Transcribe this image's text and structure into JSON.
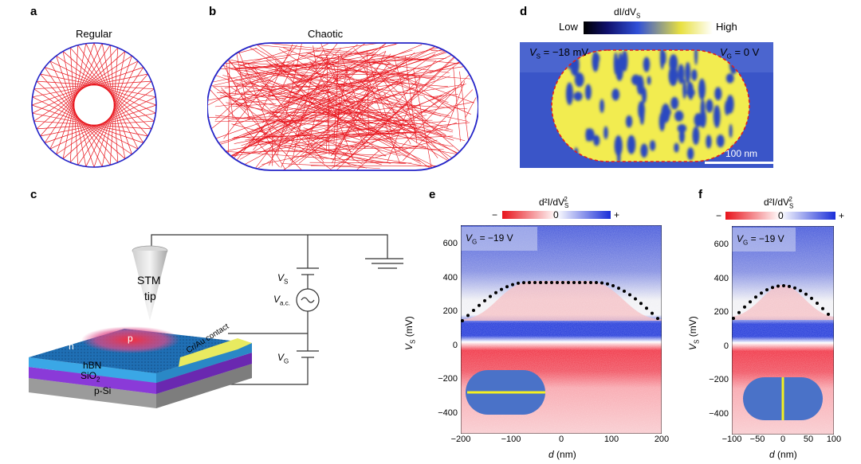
{
  "panels": {
    "a": {
      "letter": "a",
      "title": "Regular"
    },
    "b": {
      "letter": "b",
      "title": "Chaotic"
    },
    "c": {
      "letter": "c",
      "stm": "STM",
      "tip": "tip",
      "n": "n",
      "p": "p",
      "hbn": "hBN",
      "sio2": "SiO",
      "sio2_sub": "2",
      "psi": "p-Si",
      "contact": "Cr/Au contact",
      "vs": "V",
      "vs_sub": "S",
      "vac": "V",
      "vac_sub": "a.c.",
      "vg": "V",
      "vg_sub": "G"
    },
    "d": {
      "letter": "d",
      "colorbar_title": "dI/dV",
      "colorbar_sub": "S",
      "low": "Low",
      "high": "High",
      "vs_label": "V",
      "vs_sub": "S",
      "vs_value": " = −18 mV",
      "vg_label": "V",
      "vg_sub": "G",
      "vg_value": " = 0 V",
      "scalebar": "100 nm"
    },
    "e": {
      "letter": "e",
      "colorbar_title": "d²I/dV",
      "colorbar_sup": "2",
      "colorbar_sub": "S",
      "minus": "−",
      "zero": "0",
      "plus": "+",
      "vg_label": "V",
      "vg_sub": "G",
      "vg_value": " = −19 V",
      "ylabel": "V",
      "ylabel_sub": "S",
      "ylabel_unit": " (mV)",
      "xlabel": "d",
      "xlabel_unit": " (nm)",
      "xticks": [
        "−200",
        "−100",
        "0",
        "100",
        "200"
      ],
      "yticks": [
        "600",
        "400",
        "200",
        "0",
        "−200",
        "−400"
      ]
    },
    "f": {
      "letter": "f",
      "colorbar_title": "d²I/dV",
      "colorbar_sup": "2",
      "colorbar_sub": "S",
      "minus": "−",
      "zero": "0",
      "plus": "+",
      "vg_label": "V",
      "vg_sub": "G",
      "vg_value": " = −19 V",
      "ylabel": "V",
      "ylabel_sub": "S",
      "ylabel_unit": " (mV)",
      "xlabel": "d",
      "xlabel_unit": " (nm)",
      "xticks": [
        "−100",
        "−50",
        "0",
        "50",
        "100"
      ],
      "yticks": [
        "600",
        "400",
        "200",
        "0",
        "−200",
        "−400"
      ]
    }
  },
  "colors": {
    "trajectory": "#e8141c",
    "boundary": "#2424c8",
    "map_blue": "#3a55c8",
    "map_yellow": "#f2ec50",
    "contact": "#e8ea60",
    "hbn": "#3aa7e6",
    "sio2": "#8a3ad8",
    "psi": "#9b9b9b"
  }
}
